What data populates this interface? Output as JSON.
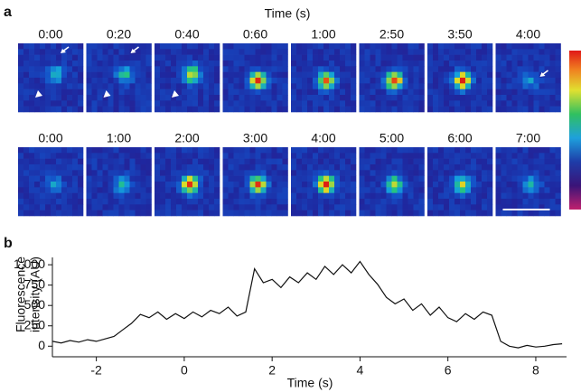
{
  "panel_a": {
    "label": "a",
    "axis_title": "Time (s)",
    "rows": [
      {
        "times": [
          "0:00",
          "0:20",
          "0:40",
          "0:60",
          "1:00",
          "2:50",
          "3:50",
          "4:00"
        ]
      },
      {
        "times": [
          "0:00",
          "1:00",
          "2:00",
          "3:00",
          "4:00",
          "5:00",
          "6:00",
          "7:00"
        ]
      }
    ]
  },
  "panel_b": {
    "label": "b"
  },
  "chart_data": {
    "type": "line",
    "ylabel": [
      "Fluorescence",
      "intensity (AU)"
    ],
    "xlabel": "Time (s)",
    "xlim": [
      -3,
      8.7
    ],
    "ylim": [
      -130,
      1090
    ],
    "xticks": [
      -2,
      0,
      2,
      4,
      6,
      8
    ],
    "yticks": [
      0,
      250,
      500,
      750,
      {
        "value": 1000,
        "label": "1,000"
      }
    ],
    "x": [
      -3.0,
      -2.8,
      -2.6,
      -2.4,
      -2.2,
      -2.0,
      -1.8,
      -1.6,
      -1.4,
      -1.2,
      -1.0,
      -0.8,
      -0.6,
      -0.4,
      -0.2,
      0.0,
      0.2,
      0.4,
      0.6,
      0.8,
      1.0,
      1.2,
      1.4,
      1.6,
      1.8,
      2.0,
      2.2,
      2.4,
      2.6,
      2.8,
      3.0,
      3.2,
      3.4,
      3.6,
      3.8,
      4.0,
      4.2,
      4.4,
      4.6,
      4.8,
      5.0,
      5.2,
      5.4,
      5.6,
      5.8,
      6.0,
      6.2,
      6.4,
      6.6,
      6.8,
      7.0,
      7.2,
      7.4,
      7.6,
      7.8,
      8.0,
      8.2,
      8.4,
      8.6
    ],
    "series": [
      {
        "color": "#111111",
        "values": [
          60,
          40,
          70,
          50,
          80,
          60,
          90,
          120,
          200,
          280,
          390,
          350,
          420,
          330,
          400,
          340,
          420,
          360,
          440,
          400,
          480,
          370,
          420,
          950,
          780,
          820,
          720,
          850,
          780,
          900,
          820,
          980,
          880,
          1000,
          900,
          1040,
          880,
          760,
          600,
          520,
          580,
          440,
          520,
          380,
          480,
          350,
          300,
          400,
          330,
          420,
          380,
          60,
          0,
          -20,
          10,
          -10,
          0,
          20,
          30
        ]
      }
    ]
  }
}
